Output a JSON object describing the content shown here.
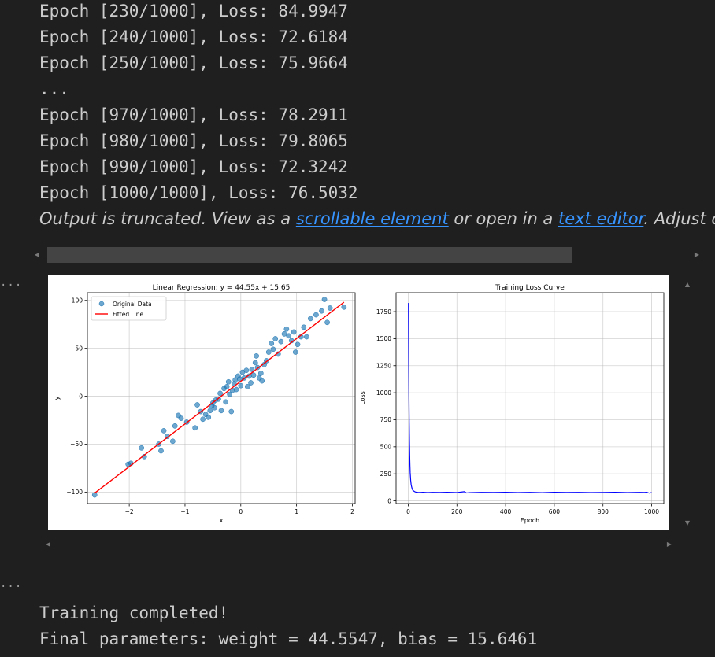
{
  "log_lines": [
    "Epoch [230/1000], Loss: 84.9947",
    "Epoch [240/1000], Loss: 72.6184",
    "Epoch [250/1000], Loss: 75.9664",
    "...",
    "Epoch [970/1000], Loss: 78.2911",
    "Epoch [980/1000], Loss: 79.8065",
    "Epoch [990/1000], Loss: 72.3242",
    "Epoch [1000/1000], Loss: 76.5032"
  ],
  "truncation": {
    "prefix": "Output is truncated. View as a ",
    "link1": "scrollable element",
    "middle": " or open in a ",
    "link2": "text editor",
    "suffix": ". Adjust cell output settings..."
  },
  "cell_ellipsis": "...",
  "bottom_lines": [
    "Training completed!",
    "Final parameters: weight = 44.5547, bias = 15.6461"
  ],
  "colors": {
    "background": "#1f1f1f",
    "text": "#cccccc",
    "link": "#3794ff",
    "scatter": "#1f77b4",
    "fit_line": "#ff0000",
    "loss_line": "#0000ff"
  },
  "chart_data": [
    {
      "type": "scatter",
      "title": "Linear Regression: y = 44.55x + 15.65",
      "xlabel": "x",
      "ylabel": "y",
      "xlim": [
        -2.75,
        2.05
      ],
      "ylim": [
        -112,
        108
      ],
      "xticks": [
        -2,
        -1,
        0,
        1,
        2
      ],
      "xtick_labels": [
        "−2",
        "−1",
        "0",
        "1",
        "2"
      ],
      "yticks": [
        -100,
        -50,
        0,
        50,
        100
      ],
      "ytick_labels": [
        "−100",
        "−50",
        "0",
        "50",
        "100"
      ],
      "grid": true,
      "legend_position": "top-left",
      "series": [
        {
          "name": "Original Data",
          "kind": "scatter",
          "points": [
            [
              -2.62,
              -103
            ],
            [
              -2.02,
              -71
            ],
            [
              -1.97,
              -70
            ],
            [
              -1.78,
              -54
            ],
            [
              -1.73,
              -63
            ],
            [
              -1.47,
              -50
            ],
            [
              -1.43,
              -57
            ],
            [
              -1.38,
              -36
            ],
            [
              -1.32,
              -42
            ],
            [
              -1.22,
              -47
            ],
            [
              -1.18,
              -31
            ],
            [
              -1.12,
              -20
            ],
            [
              -1.07,
              -23
            ],
            [
              -0.97,
              -27
            ],
            [
              -0.82,
              -33
            ],
            [
              -0.78,
              -9
            ],
            [
              -0.72,
              -16
            ],
            [
              -0.68,
              -24
            ],
            [
              -0.63,
              -19
            ],
            [
              -0.58,
              -22
            ],
            [
              -0.55,
              -15
            ],
            [
              -0.52,
              -10
            ],
            [
              -0.5,
              -7
            ],
            [
              -0.47,
              -12
            ],
            [
              -0.45,
              -4
            ],
            [
              -0.4,
              -3
            ],
            [
              -0.37,
              3
            ],
            [
              -0.35,
              -15
            ],
            [
              -0.3,
              8
            ],
            [
              -0.27,
              -6
            ],
            [
              -0.25,
              10
            ],
            [
              -0.22,
              15
            ],
            [
              -0.2,
              2
            ],
            [
              -0.17,
              -16
            ],
            [
              -0.15,
              6
            ],
            [
              -0.12,
              13
            ],
            [
              -0.1,
              17
            ],
            [
              -0.08,
              7
            ],
            [
              -0.05,
              21
            ],
            [
              -0.02,
              18
            ],
            [
              0.0,
              11
            ],
            [
              0.03,
              25
            ],
            [
              0.06,
              19
            ],
            [
              0.1,
              27
            ],
            [
              0.12,
              10
            ],
            [
              0.15,
              21
            ],
            [
              0.18,
              14
            ],
            [
              0.2,
              28
            ],
            [
              0.23,
              22
            ],
            [
              0.26,
              35
            ],
            [
              0.28,
              42
            ],
            [
              0.3,
              30
            ],
            [
              0.33,
              19
            ],
            [
              0.36,
              24
            ],
            [
              0.38,
              16
            ],
            [
              0.42,
              33
            ],
            [
              0.46,
              37
            ],
            [
              0.5,
              46
            ],
            [
              0.55,
              55
            ],
            [
              0.58,
              49
            ],
            [
              0.62,
              60
            ],
            [
              0.67,
              44
            ],
            [
              0.72,
              57
            ],
            [
              0.78,
              65
            ],
            [
              0.82,
              70
            ],
            [
              0.86,
              63
            ],
            [
              0.91,
              58
            ],
            [
              0.95,
              67
            ],
            [
              0.98,
              46
            ],
            [
              1.02,
              54
            ],
            [
              1.08,
              62
            ],
            [
              1.13,
              72
            ],
            [
              1.18,
              62
            ],
            [
              1.25,
              81
            ],
            [
              1.35,
              85
            ],
            [
              1.45,
              89
            ],
            [
              1.5,
              101
            ],
            [
              1.55,
              77
            ],
            [
              1.6,
              92
            ],
            [
              1.85,
              93
            ]
          ]
        },
        {
          "name": "Fitted Line",
          "kind": "line",
          "points": [
            [
              -2.62,
              -101.07
            ],
            [
              1.85,
              98.07
            ]
          ]
        }
      ]
    },
    {
      "type": "line",
      "title": "Training Loss Curve",
      "xlabel": "Epoch",
      "ylabel": "Loss",
      "xlim": [
        -50,
        1050
      ],
      "ylim": [
        -25,
        1925
      ],
      "xticks": [
        0,
        200,
        400,
        600,
        800,
        1000
      ],
      "xtick_labels": [
        "0",
        "200",
        "400",
        "600",
        "800",
        "1000"
      ],
      "yticks": [
        0,
        250,
        500,
        750,
        1000,
        1250,
        1500,
        1750
      ],
      "ytick_labels": [
        "0",
        "250",
        "500",
        "750",
        "1000",
        "1250",
        "1500",
        "1750"
      ],
      "grid": true,
      "series": [
        {
          "name": "",
          "x": [
            1,
            2,
            3,
            4,
            5,
            6,
            7,
            8,
            10,
            12,
            15,
            18,
            22,
            26,
            30,
            35,
            40,
            50,
            60,
            80,
            100,
            130,
            160,
            200,
            230,
            240,
            250,
            300,
            350,
            400,
            450,
            500,
            550,
            600,
            650,
            700,
            750,
            800,
            850,
            900,
            950,
            970,
            980,
            990,
            1000
          ],
          "values": [
            1830,
            1320,
            960,
            720,
            540,
            420,
            330,
            260,
            190,
            150,
            120,
            100,
            92,
            86,
            82,
            80,
            79,
            78,
            80,
            77,
            79,
            78,
            80,
            77,
            85,
            73,
            76,
            79,
            78,
            80,
            77,
            79,
            76,
            80,
            78,
            79,
            77,
            78,
            80,
            77,
            79,
            78,
            80,
            72,
            77
          ]
        }
      ]
    }
  ]
}
